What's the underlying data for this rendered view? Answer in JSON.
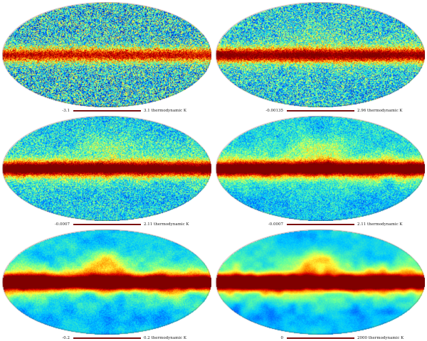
{
  "title": "",
  "colormap": [
    "#00008f",
    "#0050ff",
    "#00c8ff",
    "#60ffa0",
    "#ffff40",
    "#ff9000",
    "#e00000",
    "#800000"
  ],
  "panels": [
    {
      "min_label": "-3.1",
      "max_label": "3.1 thermodynamic K",
      "noise": 0.95,
      "smooth": 0.05
    },
    {
      "min_label": "-0.00135",
      "max_label": "2.96 thermodynamic K",
      "noise": 0.75,
      "smooth": 0.25
    },
    {
      "min_label": "-0.0007",
      "max_label": "2.11 thermodynamic K",
      "noise": 0.55,
      "smooth": 0.45
    },
    {
      "min_label": "-0.0007",
      "max_label": "2.11 thermodynamic K",
      "noise": 0.4,
      "smooth": 0.6
    },
    {
      "min_label": "-0.2",
      "max_label": "0.2 thermodynamic K",
      "noise": 0.15,
      "smooth": 0.85
    },
    {
      "min_label": "0",
      "max_label": "2000 thermodynamic K",
      "noise": 0.08,
      "smooth": 0.92
    }
  ]
}
